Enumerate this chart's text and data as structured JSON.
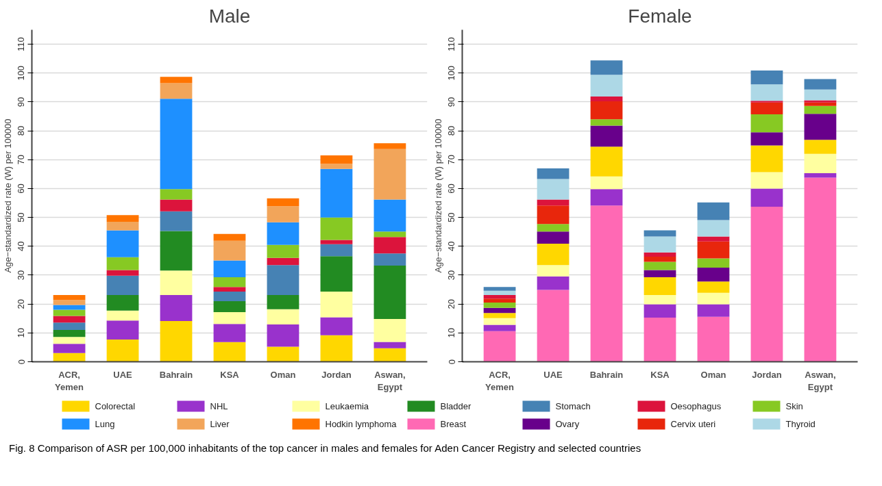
{
  "chart_data": [
    {
      "type": "bar",
      "title": "Male",
      "ylabel": "Age−standardized rate (W) per 100000",
      "stacked": true,
      "categories": [
        "ACR,\nYemen",
        "UAE",
        "Bahrain",
        "KSA",
        "Oman",
        "Jordan",
        "Aswan,\nEgypt"
      ],
      "ylim": [
        0,
        115
      ],
      "yticks": [
        0,
        10,
        20,
        30,
        40,
        50,
        60,
        70,
        80,
        90,
        100,
        110
      ],
      "grid": "y",
      "legend": "bottom",
      "annotations": [
        "Fig. 8 Comparison of ASR per 100,000 inhabitants of the top cancer in males and females for Aden Cancer Registry and selected countries"
      ],
      "series": [
        {
          "name": "Colorectal",
          "color": "#ffd700",
          "values": [
            3.0,
            7.7,
            14.1,
            6.8,
            5.2,
            9.2,
            4.7
          ]
        },
        {
          "name": "NHL",
          "color": "#9932cc",
          "values": [
            3.2,
            6.6,
            9.0,
            6.3,
            7.7,
            6.2,
            2.2
          ]
        },
        {
          "name": "Leukaemia",
          "color": "#ffffa0",
          "values": [
            2.4,
            3.4,
            8.5,
            4.1,
            5.3,
            8.9,
            7.9
          ]
        },
        {
          "name": "Bladder",
          "color": "#228b22",
          "values": [
            2.4,
            5.4,
            13.7,
            3.8,
            4.9,
            12.3,
            18.5
          ]
        },
        {
          "name": "Stomach",
          "color": "#4682b4",
          "values": [
            2.6,
            6.7,
            6.8,
            3.3,
            10.4,
            4.1,
            4.2
          ]
        },
        {
          "name": "Oesophagus",
          "color": "#dc143c",
          "values": [
            2.3,
            2.0,
            4.1,
            1.6,
            2.5,
            1.5,
            5.7
          ]
        },
        {
          "name": "Skin",
          "color": "#87c923",
          "values": [
            2.1,
            4.4,
            3.6,
            3.4,
            4.5,
            7.8,
            1.9
          ]
        },
        {
          "name": "Lung",
          "color": "#1e90ff",
          "values": [
            1.7,
            9.3,
            31.3,
            5.8,
            7.8,
            16.8,
            11.1
          ]
        },
        {
          "name": "Liver",
          "color": "#f2a55a",
          "values": [
            1.7,
            3.0,
            5.4,
            6.8,
            5.6,
            1.8,
            17.5
          ]
        },
        {
          "name": "Hodkin lymphoma",
          "color": "#ff7400",
          "values": [
            1.7,
            2.3,
            2.2,
            2.4,
            2.7,
            2.9,
            2.0
          ]
        }
      ]
    },
    {
      "type": "bar",
      "title": "Female",
      "ylabel": "Age−standardized rate (W) per 100000",
      "stacked": true,
      "categories": [
        "ACR,\nYemen",
        "UAE",
        "Bahrain",
        "KSA",
        "Oman",
        "Jordan",
        "Aswan,\nEgypt"
      ],
      "ylim": [
        0,
        115
      ],
      "yticks": [
        0,
        10,
        20,
        30,
        40,
        50,
        60,
        70,
        80,
        90,
        100,
        110
      ],
      "grid": "y",
      "legend": "bottom",
      "series": [
        {
          "name": "Breast",
          "color": "#ff69b4",
          "values": [
            10.6,
            24.9,
            54.1,
            15.3,
            15.6,
            53.7,
            63.8
          ]
        },
        {
          "color": "#9932cc",
          "values": [
            2.2,
            4.7,
            5.7,
            4.6,
            4.3,
            6.3,
            1.5
          ]
        },
        {
          "color": "#ffffa0",
          "values": [
            2.3,
            3.9,
            4.4,
            3.2,
            4.0,
            5.7,
            6.7
          ]
        },
        {
          "color": "#ffd700",
          "values": [
            1.8,
            7.4,
            10.3,
            6.2,
            3.9,
            9.2,
            4.9
          ]
        },
        {
          "name": "Ovary",
          "color": "#68008b",
          "values": [
            1.8,
            4.2,
            7.3,
            2.5,
            4.8,
            4.6,
            9.0
          ]
        },
        {
          "color": "#87c923",
          "values": [
            1.8,
            2.6,
            2.2,
            2.8,
            3.2,
            6.2,
            2.7
          ]
        },
        {
          "name": "Cervix uteri",
          "color": "#e8260c",
          "values": [
            1.4,
            6.4,
            6.2,
            1.8,
            5.9,
            4.1,
            1.2
          ]
        },
        {
          "color": "#dc143c",
          "values": [
            1.2,
            2.1,
            1.7,
            1.5,
            1.7,
            0.6,
            0.8
          ]
        },
        {
          "name": "Thyroid",
          "color": "#add8e6",
          "values": [
            1.5,
            7.1,
            7.5,
            5.5,
            5.7,
            5.7,
            3.7
          ]
        },
        {
          "color": "#4682b4",
          "values": [
            1.3,
            3.7,
            5.0,
            2.1,
            6.1,
            4.8,
            3.6
          ]
        }
      ]
    }
  ]
}
